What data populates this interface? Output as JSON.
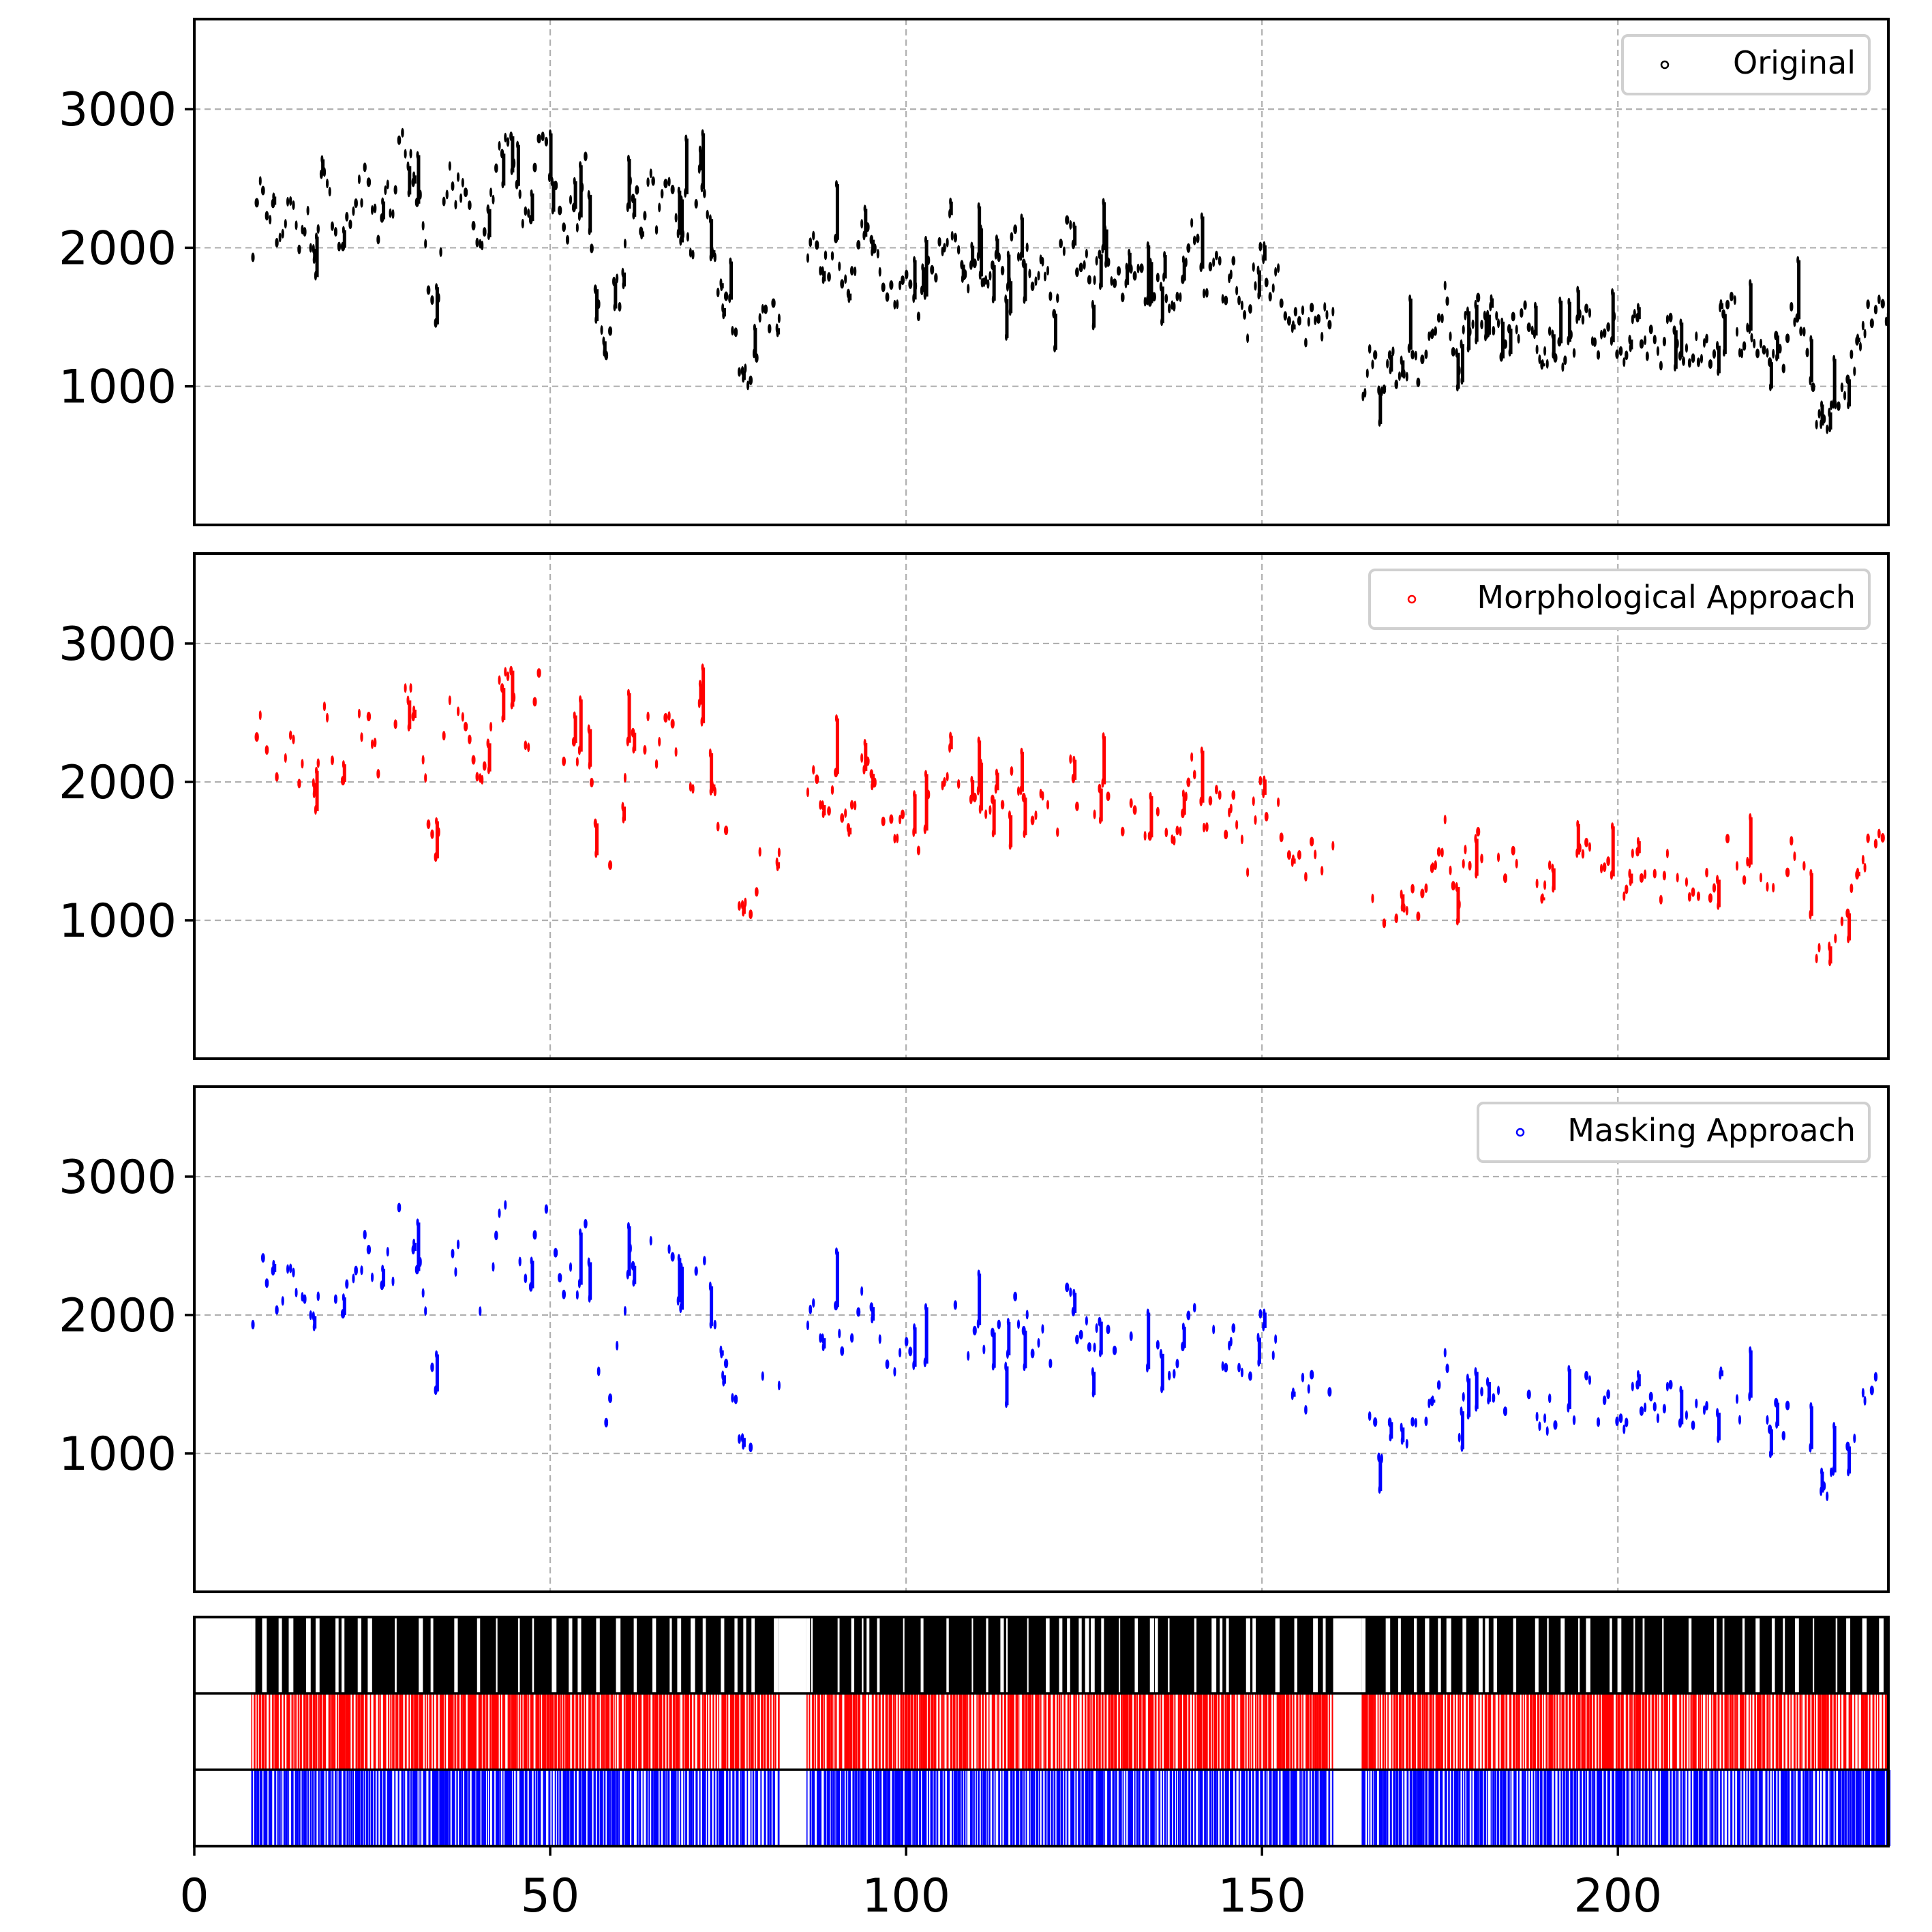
{
  "chart_data": [
    {
      "type": "scatter",
      "panel": "original",
      "legend_label": "Original",
      "legend_position": "top-right",
      "color": "#000000",
      "grid": true,
      "xlim": [
        0,
        238
      ],
      "ylim": [
        0,
        3650
      ],
      "yticks": [
        1000,
        2000,
        3000
      ],
      "xticks": [
        50,
        100,
        150,
        200
      ],
      "segments": [
        [
          8,
          82
        ],
        [
          86,
          160
        ],
        [
          164,
          238
        ]
      ],
      "anchors": [
        [
          8,
          1850
        ],
        [
          9,
          2400
        ],
        [
          11,
          2250
        ],
        [
          12,
          1950
        ],
        [
          13,
          2350
        ],
        [
          15,
          2050
        ],
        [
          16,
          2300
        ],
        [
          17,
          1800
        ],
        [
          18,
          2600
        ],
        [
          19,
          2400
        ],
        [
          20,
          2100
        ],
        [
          21,
          2000
        ],
        [
          22,
          2300
        ],
        [
          24,
          2500
        ],
        [
          25,
          2400
        ],
        [
          26,
          2000
        ],
        [
          27,
          2450
        ],
        [
          28,
          2200
        ],
        [
          29,
          3000
        ],
        [
          30,
          2700
        ],
        [
          32,
          2200
        ],
        [
          33,
          1700
        ],
        [
          34,
          1500
        ],
        [
          35,
          2300
        ],
        [
          36,
          2500
        ],
        [
          37,
          2400
        ],
        [
          39,
          2300
        ],
        [
          40,
          1900
        ],
        [
          41,
          2100
        ],
        [
          43,
          2700
        ],
        [
          44,
          2900
        ],
        [
          45,
          2500
        ],
        [
          46,
          2300
        ],
        [
          47,
          2100
        ],
        [
          48,
          2700
        ],
        [
          49,
          2800
        ],
        [
          50,
          2600
        ],
        [
          51,
          2300
        ],
        [
          52,
          2000
        ],
        [
          53,
          2350
        ],
        [
          54,
          2200
        ],
        [
          55,
          2600
        ],
        [
          56,
          1900
        ],
        [
          57,
          1500
        ],
        [
          58,
          1300
        ],
        [
          59,
          1800
        ],
        [
          60,
          1600
        ],
        [
          61,
          2500
        ],
        [
          62,
          2400
        ],
        [
          63,
          2100
        ],
        [
          64,
          2550
        ],
        [
          65,
          2200
        ],
        [
          66,
          2500
        ],
        [
          67,
          2350
        ],
        [
          68,
          2100
        ],
        [
          69,
          2300
        ],
        [
          70,
          1850
        ],
        [
          71,
          2550
        ],
        [
          72,
          2200
        ],
        [
          73,
          1950
        ],
        [
          74,
          1700
        ],
        [
          75,
          1600
        ],
        [
          76,
          1300
        ],
        [
          77,
          1100
        ],
        [
          78,
          950
        ],
        [
          79,
          1300
        ],
        [
          80,
          1500
        ],
        [
          81,
          1550
        ],
        [
          82,
          1500
        ],
        [
          86,
          1950
        ],
        [
          87,
          2150
        ],
        [
          88,
          1750
        ],
        [
          89,
          1850
        ],
        [
          90,
          2000
        ],
        [
          91,
          1700
        ],
        [
          92,
          1600
        ],
        [
          93,
          1900
        ],
        [
          94,
          2100
        ],
        [
          95,
          2000
        ],
        [
          96,
          1950
        ],
        [
          97,
          1800
        ],
        [
          98,
          1650
        ],
        [
          99,
          1600
        ],
        [
          100,
          1800
        ],
        [
          101,
          1750
        ],
        [
          102,
          1500
        ],
        [
          103,
          1850
        ],
        [
          104,
          1700
        ],
        [
          105,
          2100
        ],
        [
          106,
          2150
        ],
        [
          107,
          2200
        ],
        [
          108,
          1800
        ],
        [
          109,
          1750
        ],
        [
          110,
          1950
        ],
        [
          111,
          1700
        ],
        [
          112,
          1800
        ],
        [
          113,
          1900
        ],
        [
          114,
          1600
        ],
        [
          115,
          2200
        ],
        [
          116,
          2000
        ],
        [
          117,
          1900
        ],
        [
          118,
          1700
        ],
        [
          119,
          1900
        ],
        [
          120,
          1800
        ],
        [
          121,
          1550
        ],
        [
          122,
          2050
        ],
        [
          123,
          2150
        ],
        [
          124,
          1800
        ],
        [
          125,
          2000
        ],
        [
          126,
          1650
        ],
        [
          127,
          1900
        ],
        [
          128,
          2050
        ],
        [
          129,
          1550
        ],
        [
          130,
          1800
        ],
        [
          131,
          1700
        ],
        [
          132,
          1850
        ],
        [
          133,
          1800
        ],
        [
          134,
          1500
        ],
        [
          135,
          1800
        ],
        [
          136,
          1700
        ],
        [
          137,
          1500
        ],
        [
          138,
          1650
        ],
        [
          139,
          1800
        ],
        [
          140,
          2100
        ],
        [
          141,
          2000
        ],
        [
          142,
          1700
        ],
        [
          143,
          1900
        ],
        [
          144,
          1850
        ],
        [
          145,
          1600
        ],
        [
          146,
          1800
        ],
        [
          147,
          1500
        ],
        [
          148,
          1450
        ],
        [
          149,
          1850
        ],
        [
          150,
          1900
        ],
        [
          151,
          1750
        ],
        [
          152,
          1800
        ],
        [
          153,
          1550
        ],
        [
          154,
          1450
        ],
        [
          155,
          1650
        ],
        [
          156,
          1400
        ],
        [
          157,
          1550
        ],
        [
          158,
          1400
        ],
        [
          159,
          1500
        ],
        [
          160,
          1500
        ],
        [
          164,
          950
        ],
        [
          165,
          1200
        ],
        [
          166,
          1100
        ],
        [
          167,
          1050
        ],
        [
          168,
          1200
        ],
        [
          169,
          1050
        ],
        [
          170,
          1100
        ],
        [
          171,
          1300
        ],
        [
          172,
          1150
        ],
        [
          173,
          1350
        ],
        [
          174,
          1250
        ],
        [
          175,
          1500
        ],
        [
          176,
          1700
        ],
        [
          177,
          1100
        ],
        [
          178,
          1300
        ],
        [
          179,
          1500
        ],
        [
          180,
          1600
        ],
        [
          181,
          1450
        ],
        [
          182,
          1600
        ],
        [
          183,
          1400
        ],
        [
          184,
          1250
        ],
        [
          185,
          1500
        ],
        [
          186,
          1200
        ],
        [
          187,
          1650
        ],
        [
          188,
          1400
        ],
        [
          189,
          1150
        ],
        [
          190,
          1250
        ],
        [
          191,
          1300
        ],
        [
          192,
          1250
        ],
        [
          193,
          1200
        ],
        [
          194,
          1400
        ],
        [
          195,
          1450
        ],
        [
          196,
          1550
        ],
        [
          197,
          1200
        ],
        [
          198,
          1300
        ],
        [
          199,
          1400
        ],
        [
          200,
          1350
        ],
        [
          201,
          1200
        ],
        [
          202,
          1500
        ],
        [
          203,
          1400
        ],
        [
          204,
          1250
        ],
        [
          205,
          1300
        ],
        [
          206,
          1200
        ],
        [
          207,
          1400
        ],
        [
          208,
          1450
        ],
        [
          209,
          1200
        ],
        [
          210,
          1150
        ],
        [
          211,
          1300
        ],
        [
          212,
          1250
        ],
        [
          213,
          1200
        ],
        [
          214,
          1400
        ],
        [
          215,
          1600
        ],
        [
          216,
          1700
        ],
        [
          217,
          1350
        ],
        [
          218,
          1300
        ],
        [
          219,
          1450
        ],
        [
          220,
          1300
        ],
        [
          221,
          1250
        ],
        [
          222,
          1350
        ],
        [
          223,
          1200
        ],
        [
          224,
          1400
        ],
        [
          225,
          1550
        ],
        [
          226,
          1350
        ],
        [
          227,
          1100
        ],
        [
          228,
          700
        ],
        [
          229,
          650
        ],
        [
          230,
          800
        ],
        [
          231,
          950
        ],
        [
          232,
          1050
        ],
        [
          233,
          1200
        ],
        [
          234,
          1400
        ],
        [
          235,
          1500
        ],
        [
          236,
          1550
        ],
        [
          237,
          1500
        ],
        [
          238,
          1550
        ]
      ]
    },
    {
      "type": "scatter",
      "panel": "morphological",
      "legend_label": "Morphological Approach",
      "legend_position": "top-right",
      "color": "#ff0000",
      "grid": true,
      "xlim": [
        0,
        238
      ],
      "ylim": [
        0,
        3650
      ],
      "yticks": [
        1000,
        2000,
        3000
      ],
      "xticks": [
        50,
        100,
        150,
        200
      ],
      "segments": [
        [
          8,
          82
        ],
        [
          86,
          160
        ],
        [
          164,
          238
        ]
      ],
      "keep_fraction": 0.55
    },
    {
      "type": "scatter",
      "panel": "masking",
      "legend_label": "Masking Approach",
      "legend_position": "top-right",
      "color": "#0000ff",
      "grid": true,
      "xlim": [
        0,
        238
      ],
      "ylim": [
        0,
        3650
      ],
      "yticks": [
        1000,
        2000,
        3000
      ],
      "xticks": [
        50,
        100,
        150,
        200
      ],
      "segments": [
        [
          8,
          82
        ],
        [
          86,
          160
        ],
        [
          164,
          238
        ]
      ],
      "keep_fraction": 0.5
    },
    {
      "type": "timeline",
      "panel": "event-raster",
      "xlim": [
        0,
        238
      ],
      "xticks": [
        0,
        50,
        100,
        150,
        200
      ],
      "xtick_labels": [
        "0",
        "50",
        "100",
        "150",
        "200"
      ],
      "rows": [
        {
          "color": "#000000",
          "segments": [
            [
              8,
              82
            ],
            [
              86,
              160
            ],
            [
              164,
              238
            ]
          ]
        },
        {
          "color": "#ff0000",
          "segments": [
            [
              8,
              82
            ],
            [
              86,
              160
            ],
            [
              164,
              238
            ]
          ]
        },
        {
          "color": "#0000ff",
          "segments": [
            [
              8,
              82
            ],
            [
              86,
              160
            ],
            [
              164,
              238
            ]
          ]
        }
      ]
    }
  ]
}
